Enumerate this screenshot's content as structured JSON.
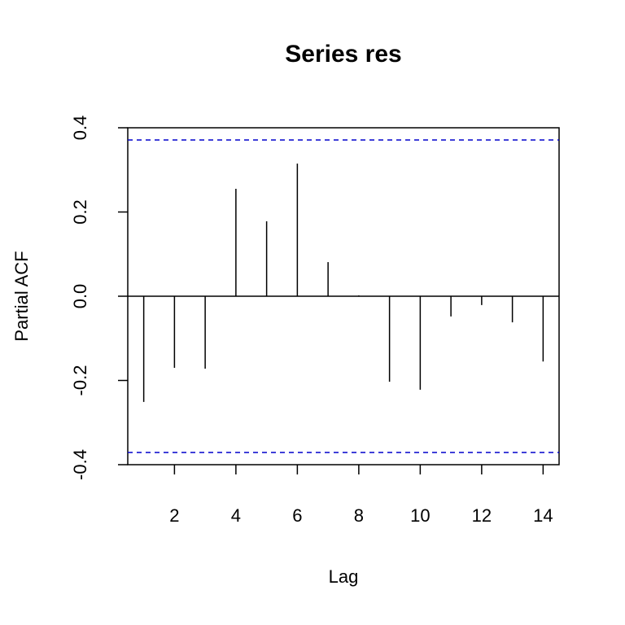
{
  "chart_data": {
    "type": "pacf",
    "title": "Series  res",
    "xlabel": "Lag",
    "ylabel": "Partial ACF",
    "x": [
      1,
      2,
      3,
      4,
      5,
      6,
      7,
      8,
      9,
      10,
      11,
      12,
      13,
      14
    ],
    "values": [
      -0.251,
      -0.17,
      -0.172,
      0.255,
      0.178,
      0.315,
      0.081,
      0.002,
      -0.203,
      -0.222,
      -0.048,
      -0.021,
      -0.062,
      -0.155
    ],
    "color": "#000000",
    "ci": 0.371,
    "ci_color": "#0000cc",
    "xlim": [
      0.48,
      14.52
    ],
    "xticks": [
      2,
      4,
      6,
      8,
      10,
      12,
      14
    ],
    "ylim": [
      -0.4,
      0.4
    ],
    "yticks": [
      -0.4,
      -0.2,
      {
        "value": 0,
        "label": "0.0"
      },
      0.2,
      0.4
    ]
  }
}
